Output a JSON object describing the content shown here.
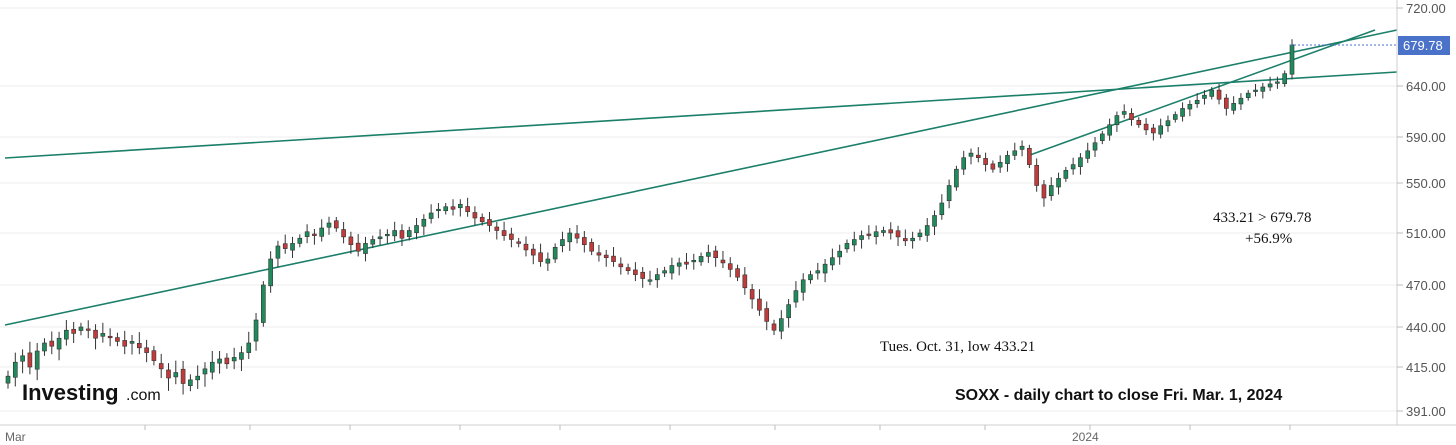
{
  "chart_data": {
    "type": "candlestick",
    "symbol": "SOXX",
    "ylim": [
      375,
      728
    ],
    "y_ticks": [
      "720.00",
      "679.78",
      "640.00",
      "590.00",
      "550.00",
      "510.00",
      "470.00",
      "440.00",
      "415.00",
      "391.00"
    ],
    "x_labels": [
      "Mar",
      "2024"
    ],
    "current_price": "679.78",
    "colors": {
      "up": "#1f8a5b",
      "down": "#c23b3b",
      "trend": "#1b7f6a",
      "price_tag": "#4a72c9"
    },
    "closes": [
      410,
      418,
      422,
      415,
      425,
      430,
      428,
      433,
      438,
      436,
      440,
      438,
      433,
      436,
      434,
      431,
      428,
      431,
      427,
      424,
      419,
      414,
      409,
      412,
      406,
      408,
      410,
      414,
      418,
      420,
      417,
      421,
      424,
      430,
      445,
      470,
      490,
      500,
      498,
      502,
      506,
      511,
      508,
      514,
      518,
      514,
      507,
      501,
      496,
      502,
      505,
      507,
      509,
      512,
      506,
      512,
      516,
      521,
      526,
      529,
      531,
      529,
      533,
      527,
      522,
      519,
      516,
      512,
      508,
      505,
      502,
      497,
      493,
      488,
      490,
      499,
      505,
      510,
      506,
      501,
      496,
      493,
      491,
      488,
      484,
      481,
      478,
      475,
      474,
      478,
      481,
      485,
      487,
      486,
      489,
      492,
      495,
      491,
      487,
      482,
      476,
      468,
      460,
      452,
      444,
      438,
      446,
      456,
      466,
      474,
      478,
      481,
      486,
      491,
      496,
      502,
      505,
      508,
      509,
      511,
      512,
      510,
      507,
      504,
      506,
      510,
      516,
      524,
      534,
      548,
      562,
      572,
      576,
      572,
      566,
      562,
      568,
      574,
      578,
      582,
      566,
      548,
      538,
      548,
      554,
      561,
      566,
      572,
      578,
      585,
      593,
      602,
      611,
      615,
      607,
      602,
      597,
      594,
      601,
      606,
      612,
      618,
      622,
      626,
      631,
      636,
      627,
      618,
      623,
      628,
      633,
      636,
      639,
      642,
      644,
      652,
      680
    ],
    "annotations": {
      "low_label": "Tues. Oct. 31, low 433.21",
      "gain_line1": "433.21 > 679.78",
      "gain_line2": "+56.9%",
      "caption": "SOXX - daily chart to close Fri. Mar. 1, 2024"
    },
    "logo": {
      "main": "Investing",
      "sub": ".com"
    }
  }
}
